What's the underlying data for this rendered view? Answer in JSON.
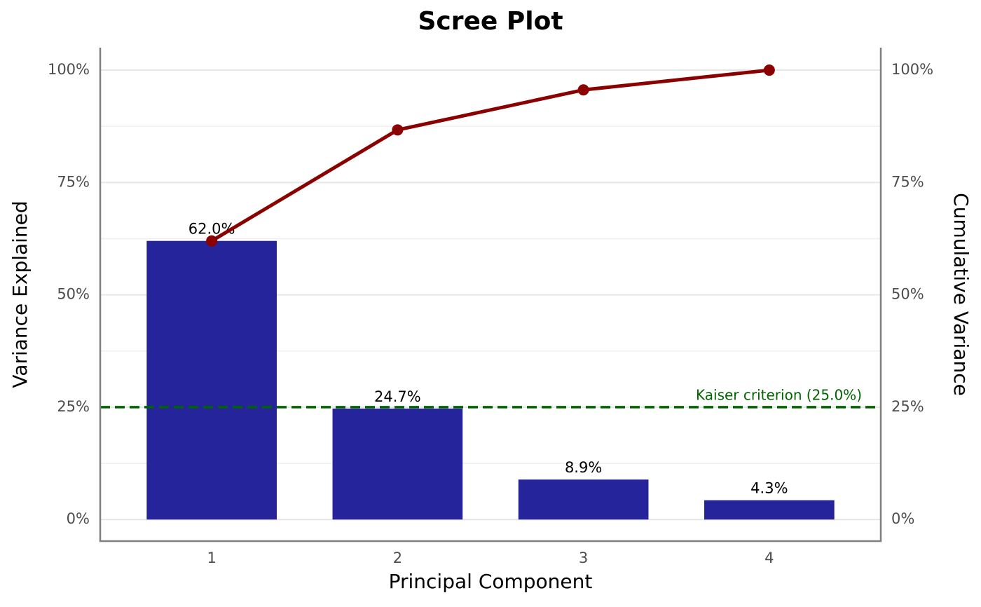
{
  "chart_data": {
    "type": "bar-line",
    "title": "Scree Plot",
    "x_label": "Principal Component",
    "y_label": "Variance Explained",
    "y2_label": "Cumulative Variance",
    "categories": [
      "1",
      "2",
      "3",
      "4"
    ],
    "series": [
      {
        "type": "bar",
        "color": "#26249a",
        "values": [
          62.0,
          24.7,
          8.9,
          4.3
        ],
        "value_labels": [
          "62.0%",
          "24.7%",
          "8.9%",
          "4.3%"
        ]
      },
      {
        "type": "line",
        "axis": "y2",
        "color": "#8b0000",
        "values": [
          62.0,
          86.7,
          95.6,
          100
        ]
      }
    ],
    "ylim": [
      -4.8,
      105
    ],
    "yticks": [
      {
        "value": 0,
        "label": "0%"
      },
      {
        "value": 25,
        "label": "25%"
      },
      {
        "value": 50,
        "label": "50%"
      },
      {
        "value": 75,
        "label": "75%"
      },
      {
        "value": 100,
        "label": "100%"
      }
    ],
    "y2lim": [
      -4.8,
      105
    ],
    "y2ticks": [
      {
        "value": 0,
        "label": "0%"
      },
      {
        "value": 25,
        "label": "25%"
      },
      {
        "value": 50,
        "label": "50%"
      },
      {
        "value": 75,
        "label": "75%"
      },
      {
        "value": 100,
        "label": "100%"
      }
    ],
    "minor_yticks": [
      12.5,
      37.5,
      62.5,
      87.5
    ],
    "grid": true,
    "reference_line": {
      "value": 25,
      "label": "Kaiser criterion (25.0%)",
      "color": "#006400"
    }
  }
}
